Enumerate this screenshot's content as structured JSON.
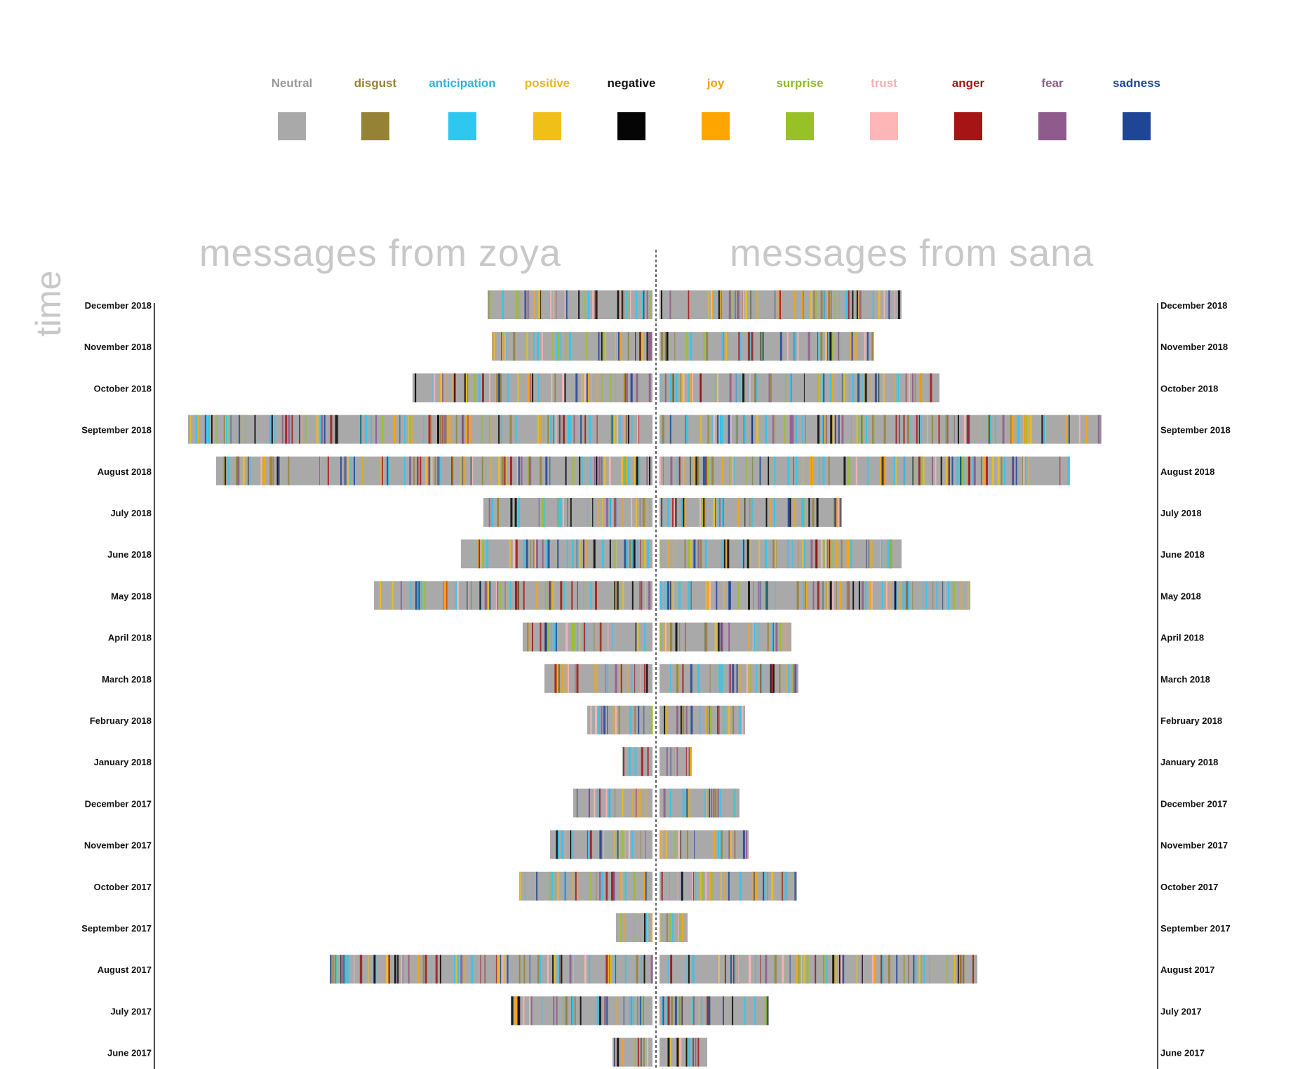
{
  "legend": [
    {
      "label": "Neutral",
      "color": "#a9a9a9",
      "text_color": "#999999"
    },
    {
      "label": "disgust",
      "color": "#958235",
      "text_color": "#958235"
    },
    {
      "label": "anticipation",
      "color": "#2ec7f0",
      "text_color": "#2bb4dd"
    },
    {
      "label": "positive",
      "color": "#f0c018",
      "text_color": "#e8b520"
    },
    {
      "label": "negative",
      "color": "#050505",
      "text_color": "#111111"
    },
    {
      "label": "joy",
      "color": "#ffa500",
      "text_color": "#f5a000"
    },
    {
      "label": "surprise",
      "color": "#98c128",
      "text_color": "#8fb82a"
    },
    {
      "label": "trust",
      "color": "#ffb6b6",
      "text_color": "#f7b0b0"
    },
    {
      "label": "anger",
      "color": "#a51515",
      "text_color": "#a51515"
    },
    {
      "label": "fear",
      "color": "#8f5a8c",
      "text_color": "#8f5a8c"
    },
    {
      "label": "sadness",
      "color": "#1f4696",
      "text_color": "#1f4696"
    }
  ],
  "titles": {
    "left": "messages from zoya",
    "right": "messages from sana",
    "time_axis": "time"
  },
  "chart_data": {
    "type": "bar",
    "categories": [
      "December 2018",
      "November 2018",
      "October 2018",
      "September 2018",
      "August 2018",
      "July 2018",
      "June 2018",
      "May 2018",
      "April 2018",
      "March 2018",
      "February 2018",
      "January 2018",
      "December 2017",
      "November 2017",
      "October 2017",
      "September 2017",
      "August 2017",
      "July 2017",
      "June 2017"
    ],
    "series": [
      {
        "name": "messages from zoya",
        "side": "left",
        "values": [
          235,
          229,
          342,
          662,
          622,
          241,
          273,
          397,
          185,
          154,
          93,
          43,
          113,
          146,
          190,
          52,
          460,
          202,
          57
        ]
      },
      {
        "name": "messages from sana",
        "side": "right",
        "values": [
          345,
          305,
          399,
          630,
          585,
          260,
          345,
          443,
          188,
          198,
          122,
          46,
          114,
          127,
          196,
          40,
          453,
          156,
          68
        ]
      }
    ],
    "xlabel": "",
    "ylabel": "time"
  }
}
